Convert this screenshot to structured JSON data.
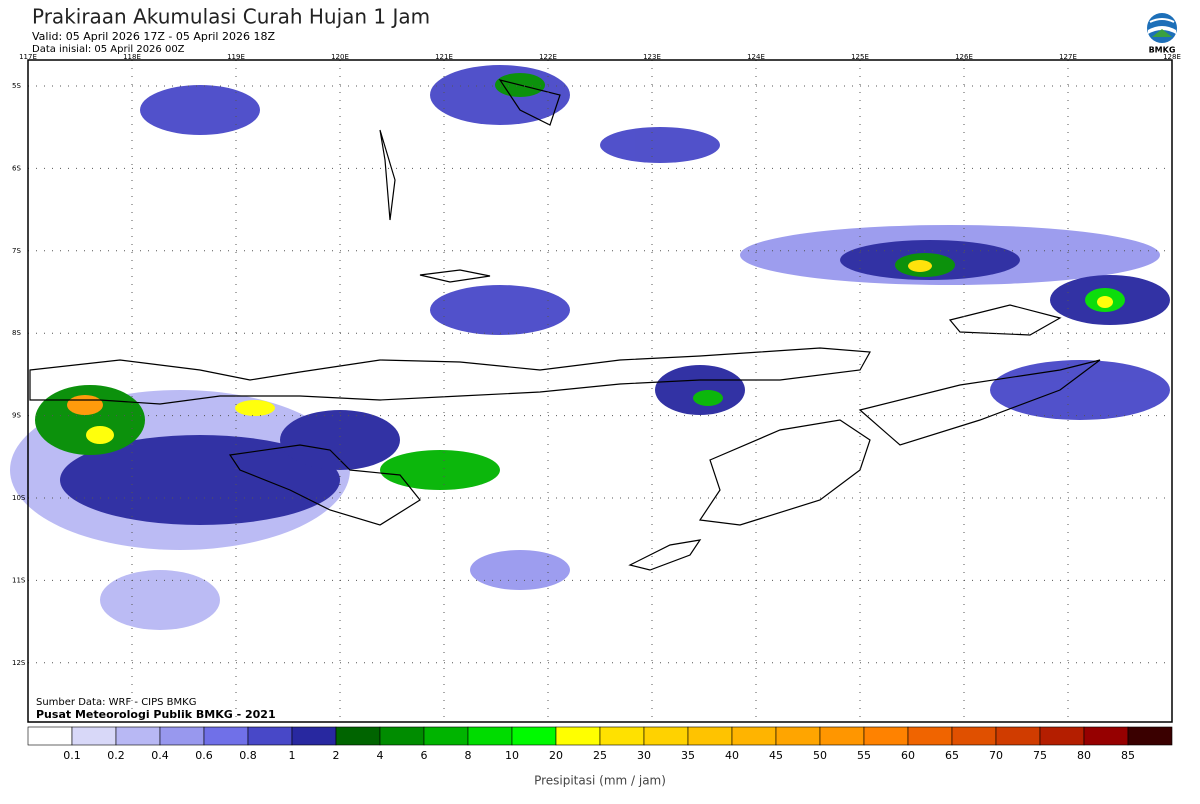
{
  "header": {
    "title": "Prakiraan Akumulasi Curah Hujan 1 Jam",
    "valid": "Valid: 05 April 2026 17Z - 05 April 2026 18Z",
    "initial": "Data inisial: 05 April 2026 00Z",
    "logo": "BMKG"
  },
  "map": {
    "lon_labels": [
      "117E",
      "118E",
      "119E",
      "120E",
      "121E",
      "122E",
      "123E",
      "124E",
      "125E",
      "126E",
      "127E",
      "128E"
    ],
    "lat_labels": [
      "5S",
      "6S",
      "7S",
      "8S",
      "9S",
      "10S",
      "11S",
      "12S"
    ],
    "source": "Sumber Data: WRF - CIPS BMKG",
    "credit": "Pusat Meteorologi Publik BMKG - 2021"
  },
  "colorbar": {
    "labels": [
      0.1,
      0.2,
      0.4,
      0.6,
      0.8,
      1,
      2,
      4,
      6,
      8,
      10,
      20,
      25,
      30,
      35,
      40,
      45,
      50,
      55,
      60,
      65,
      70,
      75,
      80,
      85
    ],
    "colors": [
      "#ffffff",
      "#d8d8f8",
      "#b8b8f4",
      "#9898ee",
      "#7070e8",
      "#4848c8",
      "#2828a0",
      "#006400",
      "#008c00",
      "#00b400",
      "#00dc00",
      "#00fa00",
      "#ffff00",
      "#ffe100",
      "#ffd200",
      "#ffc300",
      "#ffb400",
      "#ffa500",
      "#ff9600",
      "#ff8200",
      "#f06400",
      "#e05000",
      "#d03c00",
      "#b41e00",
      "#960000",
      "#3a0000"
    ],
    "title": "Presipitasi (mm / jam)"
  }
}
